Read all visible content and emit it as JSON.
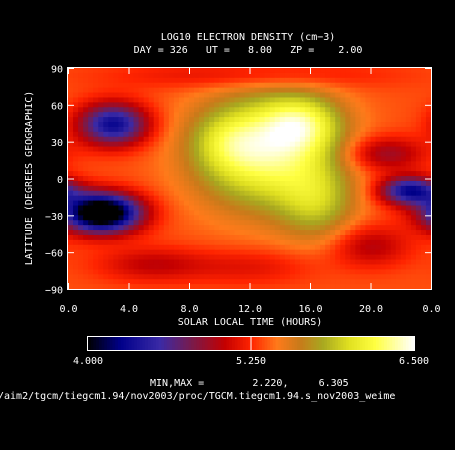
{
  "chart_data": {
    "type": "heatmap",
    "title": "LOG10 ELECTRON DENSITY (cm−3)",
    "subtitle": "DAY = 326   UT =   8.00   ZP =    2.00",
    "xlabel": "SOLAR LOCAL TIME (HOURS)",
    "ylabel": "LATITUDE (DEGREES GEOGRAPHIC)",
    "x_ticks": [
      "0.0",
      "4.0",
      "8.0",
      "12.0",
      "16.0",
      "20.0",
      "0.0"
    ],
    "y_ticks": [
      "90",
      "60",
      "30",
      "0",
      "−30",
      "−60",
      "−90"
    ],
    "x_range": [
      0,
      24
    ],
    "y_range": [
      -90,
      90
    ],
    "colorbar": {
      "min_label": "4.000",
      "mid_label": "5.250",
      "max_label": "6.500",
      "range": [
        4.0,
        6.5
      ],
      "stops": [
        [
          0.0,
          "#000000"
        ],
        [
          0.1,
          "#00008a"
        ],
        [
          0.22,
          "#3a2aa6"
        ],
        [
          0.32,
          "#7a1a4a"
        ],
        [
          0.42,
          "#c40000"
        ],
        [
          0.5,
          "#ff2400"
        ],
        [
          0.58,
          "#ff7a1a"
        ],
        [
          0.65,
          "#c87a1a"
        ],
        [
          0.72,
          "#a8a820"
        ],
        [
          0.8,
          "#e0e020"
        ],
        [
          0.88,
          "#ffff40"
        ],
        [
          1.0,
          "#ffffff"
        ]
      ]
    },
    "minmax_text": "MIN,MAX =        2.220,     6.305",
    "footer_path": "/aim2/tgcm/tiegcm1.94/nov2003/proc/TGCM.tiegcm1.94.s_nov2003_weime",
    "field": {
      "base": 5.35,
      "features": [
        {
          "x": 13.0,
          "y": 22,
          "sx": 3.2,
          "sy": 32,
          "amp": 0.95
        },
        {
          "x": 15.5,
          "y": 45,
          "sx": 1.8,
          "sy": 16,
          "amp": 0.55
        },
        {
          "x": 16.5,
          "y": -20,
          "sx": 1.8,
          "sy": 22,
          "amp": 0.45
        },
        {
          "x": 10.5,
          "y": 30,
          "sx": 1.6,
          "sy": 16,
          "amp": 0.25
        },
        {
          "x": 2.2,
          "y": -28,
          "sx": 1.8,
          "sy": 11,
          "amp": -1.75
        },
        {
          "x": 3.0,
          "y": 44,
          "sx": 1.6,
          "sy": 12,
          "amp": -1.05
        },
        {
          "x": 22.6,
          "y": -10,
          "sx": 1.4,
          "sy": 8,
          "amp": -1.05
        },
        {
          "x": 21.0,
          "y": 20,
          "sx": 1.8,
          "sy": 10,
          "amp": -0.45
        },
        {
          "x": 20.0,
          "y": -55,
          "sx": 1.8,
          "sy": 12,
          "amp": -0.35
        },
        {
          "x": 5.5,
          "y": -70,
          "sx": 2.5,
          "sy": 10,
          "amp": -0.3
        },
        {
          "x": 12.0,
          "y": -72,
          "sx": 3.0,
          "sy": 10,
          "amp": -0.2
        },
        {
          "x": 12.0,
          "y": 84,
          "sx": 6.0,
          "sy": 8,
          "amp": -0.25
        }
      ]
    }
  }
}
